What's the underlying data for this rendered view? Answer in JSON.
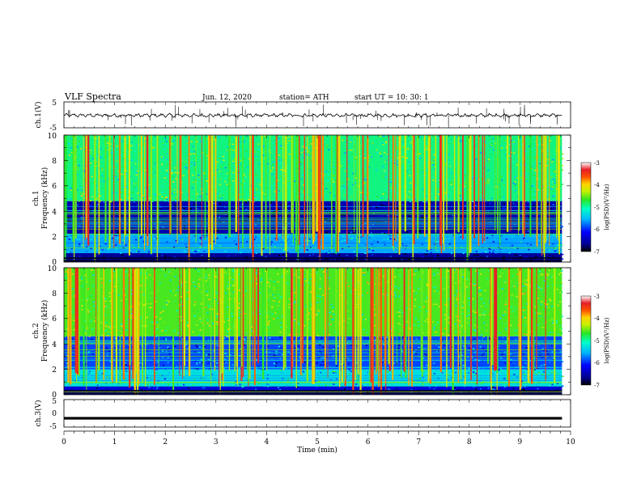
{
  "header": {
    "title": "VLF  Spectra",
    "date": "Jun. 12, 2020",
    "station": "station= ATH",
    "start": "start  UT  =    10: 30: 1"
  },
  "chart_data": [
    {
      "type": "line",
      "panel": "ch1-waveform",
      "ylabel": "ch.1(V)",
      "ylim": [
        -5,
        5
      ],
      "yticks": [
        "5",
        "-5"
      ],
      "baseline_v": -0.2,
      "spike_min_v": -4.5,
      "spike_max_v": 4.0
    },
    {
      "type": "heatmap",
      "panel": "ch1-spectrogram",
      "ylabel_top": "ch.1",
      "ylabel": "Frequency  (kHz)",
      "ylim": [
        0,
        10
      ],
      "yticks": [
        "0",
        "2",
        "4",
        "6",
        "8",
        "10"
      ],
      "colorbar": {
        "label": "log(PSD)(V²/Hz)",
        "range": [
          -7,
          -3
        ],
        "ticks": [
          "-3",
          "-4",
          "-5",
          "-6",
          "-7"
        ]
      },
      "bands": [
        {
          "from_khz": 0,
          "to_khz": 0.7,
          "level": -6.6
        },
        {
          "from_khz": 0.7,
          "to_khz": 2.2,
          "level": -5.6
        },
        {
          "from_khz": 2.2,
          "to_khz": 4.8,
          "level": -6.5
        },
        {
          "from_khz": 4.8,
          "to_khz": 10,
          "level": -4.9
        }
      ]
    },
    {
      "type": "heatmap",
      "panel": "ch2-spectrogram",
      "ylabel_top": "ch.2",
      "ylabel": "Frequency  (kHz)",
      "ylim": [
        0,
        10
      ],
      "yticks": [
        "0",
        "2",
        "4",
        "6",
        "8",
        "10"
      ],
      "colorbar": {
        "label": "log(PSD)(V²/Hz)",
        "range": [
          -7,
          -3
        ],
        "ticks": [
          "-3",
          "-4",
          "-5",
          "-6",
          "-7"
        ]
      },
      "bands": [
        {
          "from_khz": 0,
          "to_khz": 0.7,
          "level": -6.3
        },
        {
          "from_khz": 0.7,
          "to_khz": 2.0,
          "level": -5.3
        },
        {
          "from_khz": 2.0,
          "to_khz": 4.6,
          "level": -5.9
        },
        {
          "from_khz": 4.6,
          "to_khz": 10,
          "level": -4.6
        }
      ]
    },
    {
      "type": "line",
      "panel": "ch3-waveform",
      "ylabel": "ch.3(V)",
      "ylim": [
        -5,
        5
      ],
      "yticks": [
        "5",
        "0",
        "-5"
      ],
      "baseline_v": -1.8
    }
  ],
  "x_axis": {
    "label": "Time  (min)",
    "range": [
      0,
      10
    ],
    "ticks": [
      "0",
      "1",
      "2",
      "3",
      "4",
      "5",
      "6",
      "7",
      "8",
      "9",
      "10"
    ],
    "data_end_min": 9.83
  }
}
